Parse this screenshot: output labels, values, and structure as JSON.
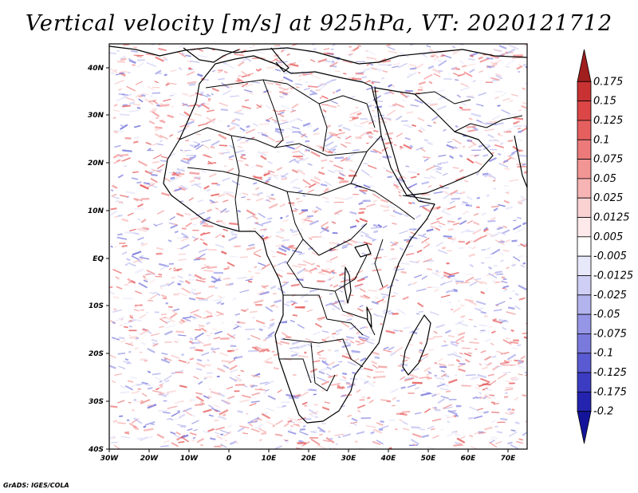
{
  "title": "Vertical velocity [m/s] at 925hPa, VT: 2020121712",
  "credit": "GrADS: IGES/COLA",
  "map": {
    "region": "Africa and surrounding oceans",
    "lon_range": [
      -30,
      77
    ],
    "lat_range": [
      -40,
      45
    ],
    "x_ticks": [
      "30W",
      "20W",
      "10W",
      "0",
      "10E",
      "20E",
      "30E",
      "40E",
      "50E",
      "60E",
      "70E"
    ],
    "y_ticks": [
      "40N",
      "30N",
      "20N",
      "10N",
      "EQ",
      "10S",
      "20S",
      "30S",
      "40S"
    ]
  },
  "colorbar": {
    "levels": [
      "0.175",
      "0.15",
      "0.125",
      "0.1",
      "0.075",
      "0.05",
      "0.025",
      "0.0125",
      "0.005",
      "-0.005",
      "-0.0125",
      "-0.025",
      "-0.05",
      "-0.075",
      "-0.1",
      "-0.125",
      "-0.175",
      "-0.2"
    ],
    "colors": [
      "#a01e1e",
      "#c83232",
      "#dc4646",
      "#e65f5f",
      "#ec7a7a",
      "#f29595",
      "#f7b4b4",
      "#fbd2d2",
      "#fde9e9",
      "#ffffff",
      "#e8e8fb",
      "#cfcff5",
      "#b3b3ee",
      "#9696e6",
      "#7a7add",
      "#5a5ad2",
      "#3c3cc3",
      "#2323b0",
      "#14149a"
    ]
  },
  "colors": {
    "positive": "#e05050",
    "negative": "#5050e0",
    "borders": "#000000"
  }
}
